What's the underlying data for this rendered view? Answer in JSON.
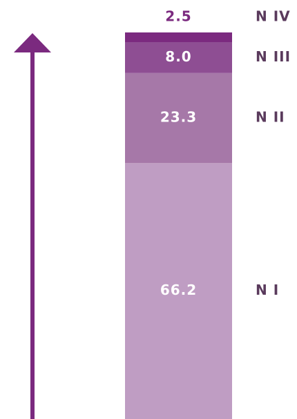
{
  "chart_data": {
    "type": "bar",
    "stacked": true,
    "series": [
      {
        "name": "N I",
        "color": "#bf9dc3",
        "values": [
          66.2
        ],
        "value_labels": [
          "66.2"
        ]
      },
      {
        "name": "N II",
        "color": "#a678a8",
        "values": [
          23.3
        ],
        "value_labels": [
          "23.3"
        ]
      },
      {
        "name": "N III",
        "color": "#8e4e93",
        "values": [
          8.0
        ],
        "value_labels": [
          "8.0"
        ]
      },
      {
        "name": "N IV",
        "color": "#7b2a7f",
        "values": [
          2.5
        ],
        "value_labels": [
          "2.5"
        ]
      }
    ],
    "ylim": [
      0,
      100
    ],
    "arrow_color": "#7b2a7f",
    "label_color": "#ffffff",
    "name_color": "#5a3a5c"
  }
}
